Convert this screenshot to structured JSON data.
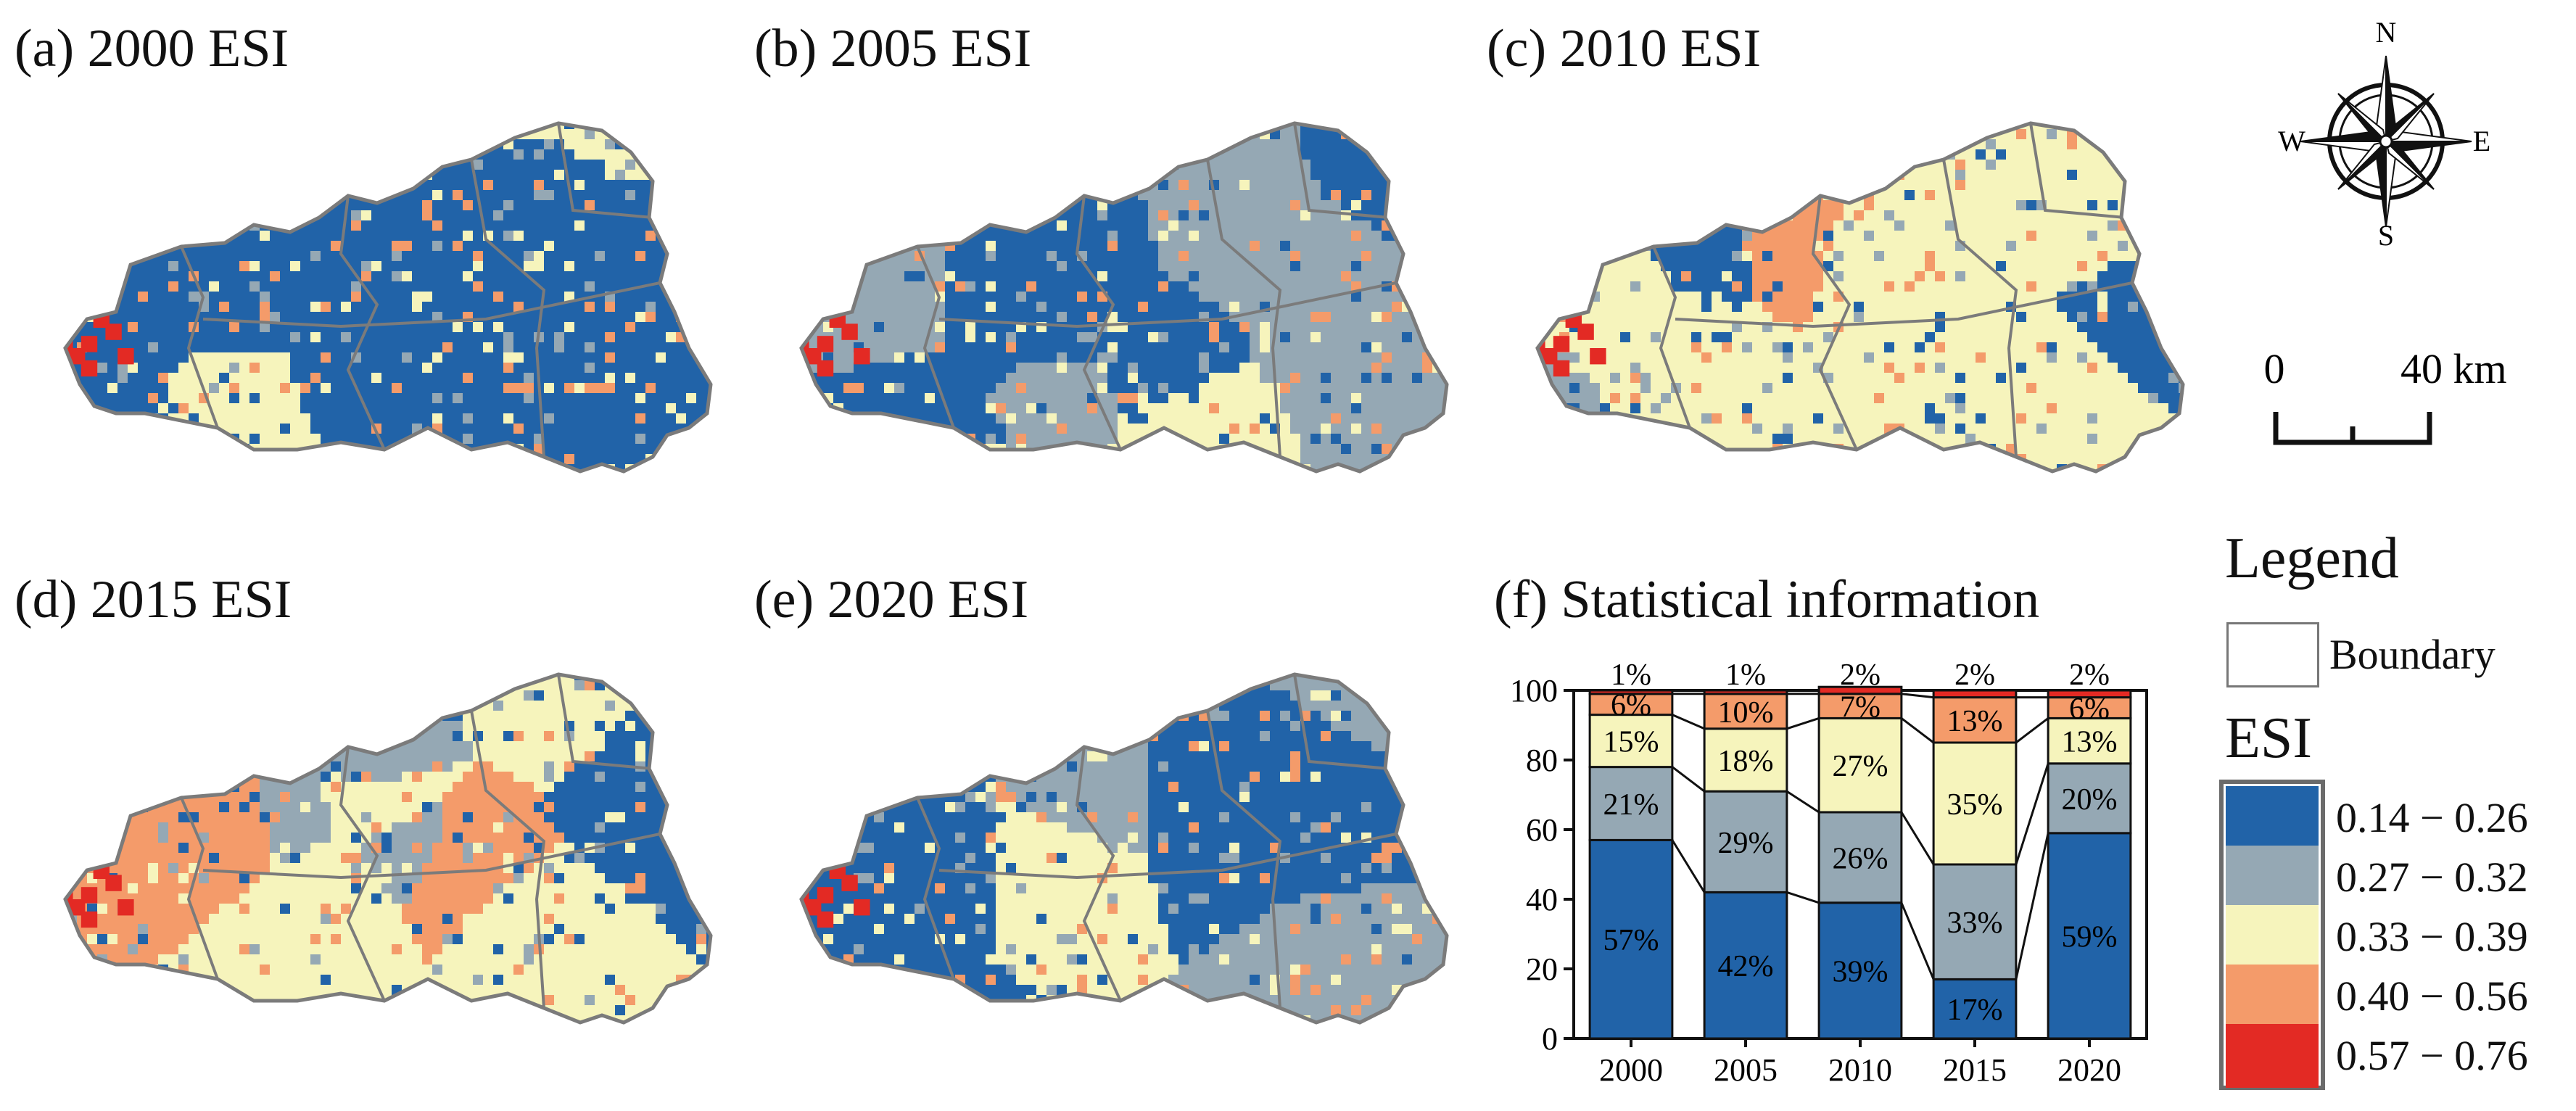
{
  "colors": {
    "class1": "#2163a8",
    "class2": "#95a8b4",
    "class3": "#f6f4bc",
    "class4": "#f49b6a",
    "class5": "#e32a24",
    "boundary": "#7b7b7b"
  },
  "panels": [
    {
      "label": "(a) 2000 ESI",
      "dominant": "class1"
    },
    {
      "label": "(b) 2005 ESI",
      "dominant": "class1"
    },
    {
      "label": "(c) 2010 ESI",
      "dominant": "class1"
    },
    {
      "label": "(d) 2015 ESI",
      "dominant": "class3"
    },
    {
      "label": "(e) 2020 ESI",
      "dominant": "class1"
    },
    {
      "label": "(f) Statistical information"
    }
  ],
  "compass": {
    "n": "N",
    "s": "S",
    "e": "E",
    "w": "W",
    "icon": "compass-rose-icon"
  },
  "scale": {
    "start": "0",
    "end": "40 km"
  },
  "legend": {
    "title": "Legend",
    "boundary_label": "Boundary",
    "esi_title": "ESI",
    "classes": [
      {
        "label": "0.14 − 0.26",
        "color": "#2163a8"
      },
      {
        "label": "0.27 − 0.32",
        "color": "#95a8b4"
      },
      {
        "label": "0.33 − 0.39",
        "color": "#f6f4bc"
      },
      {
        "label": "0.40 − 0.56",
        "color": "#f49b6a"
      },
      {
        "label": "0.57 − 0.76",
        "color": "#e32a24"
      }
    ]
  },
  "chart_data": {
    "type": "bar",
    "stacked": true,
    "title": "(f) Statistical information",
    "categories": [
      "2000",
      "2005",
      "2010",
      "2015",
      "2020"
    ],
    "ylim": [
      0,
      100
    ],
    "yticks": [
      0,
      20,
      40,
      60,
      80,
      100
    ],
    "series": [
      {
        "name": "0.14 − 0.26",
        "color": "#2163a8",
        "values": [
          57,
          42,
          39,
          17,
          59
        ],
        "labels": [
          "57%",
          "42%",
          "39%",
          "17%",
          "59%"
        ]
      },
      {
        "name": "0.27 − 0.32",
        "color": "#95a8b4",
        "values": [
          21,
          29,
          26,
          33,
          20
        ],
        "labels": [
          "21%",
          "29%",
          "26%",
          "33%",
          "20%"
        ]
      },
      {
        "name": "0.33 − 0.39",
        "color": "#f6f4bc",
        "values": [
          15,
          18,
          27,
          35,
          13
        ],
        "labels": [
          "15%",
          "18%",
          "27%",
          "35%",
          "13%"
        ]
      },
      {
        "name": "0.40 − 0.56",
        "color": "#f49b6a",
        "values": [
          6,
          10,
          7,
          13,
          6
        ],
        "labels": [
          "6%",
          "10%",
          "7%",
          "13%",
          "6%"
        ]
      },
      {
        "name": "0.57 − 0.76",
        "color": "#e32a24",
        "values": [
          1,
          1,
          2,
          2,
          2
        ],
        "labels": [
          "1%",
          "1%",
          "2%",
          "2%",
          "2%"
        ]
      }
    ]
  }
}
